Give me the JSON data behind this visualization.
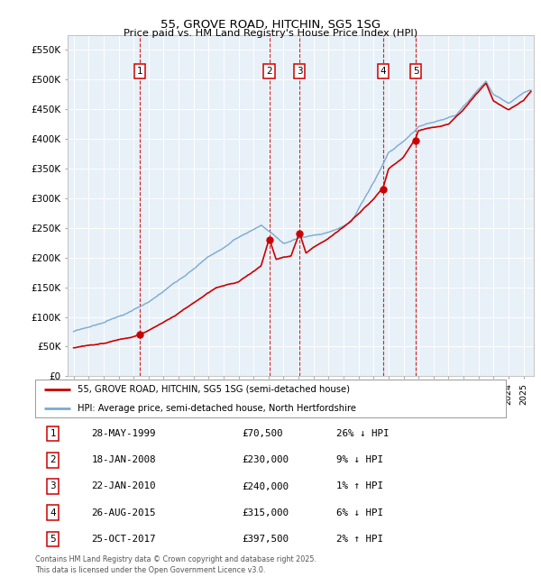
{
  "title": "55, GROVE ROAD, HITCHIN, SG5 1SG",
  "subtitle": "Price paid vs. HM Land Registry's House Price Index (HPI)",
  "legend_line1": "55, GROVE ROAD, HITCHIN, SG5 1SG (semi-detached house)",
  "legend_line2": "HPI: Average price, semi-detached house, North Hertfordshire",
  "footer": "Contains HM Land Registry data © Crown copyright and database right 2025.\nThis data is licensed under the Open Government Licence v3.0.",
  "sale_color": "#cc0000",
  "hpi_color": "#7aaad0",
  "plot_bg_color": "#e8f0f8",
  "ylim": [
    0,
    575000
  ],
  "yticks": [
    0,
    50000,
    100000,
    150000,
    200000,
    250000,
    300000,
    350000,
    400000,
    450000,
    500000,
    550000
  ],
  "ytick_labels": [
    "£0",
    "£50K",
    "£100K",
    "£150K",
    "£200K",
    "£250K",
    "£300K",
    "£350K",
    "£400K",
    "£450K",
    "£500K",
    "£550K"
  ],
  "sales": [
    {
      "label": "1",
      "x_year": 1999.41,
      "price": 70500
    },
    {
      "label": "2",
      "x_year": 2008.05,
      "price": 230000
    },
    {
      "label": "3",
      "x_year": 2010.06,
      "price": 240000
    },
    {
      "label": "4",
      "x_year": 2015.65,
      "price": 315000
    },
    {
      "label": "5",
      "x_year": 2017.82,
      "price": 397500
    }
  ],
  "table_rows": [
    {
      "num": "1",
      "date": "28-MAY-1999",
      "price": "£70,500",
      "pct": "26% ↓ HPI"
    },
    {
      "num": "2",
      "date": "18-JAN-2008",
      "price": "£230,000",
      "pct": "9% ↓ HPI"
    },
    {
      "num": "3",
      "date": "22-JAN-2010",
      "price": "£240,000",
      "pct": "1% ↑ HPI"
    },
    {
      "num": "4",
      "date": "26-AUG-2015",
      "price": "£315,000",
      "pct": "6% ↓ HPI"
    },
    {
      "num": "5",
      "date": "25-OCT-2017",
      "price": "£397,500",
      "pct": "2% ↑ HPI"
    }
  ],
  "xmin": 1994.6,
  "xmax": 2025.7
}
